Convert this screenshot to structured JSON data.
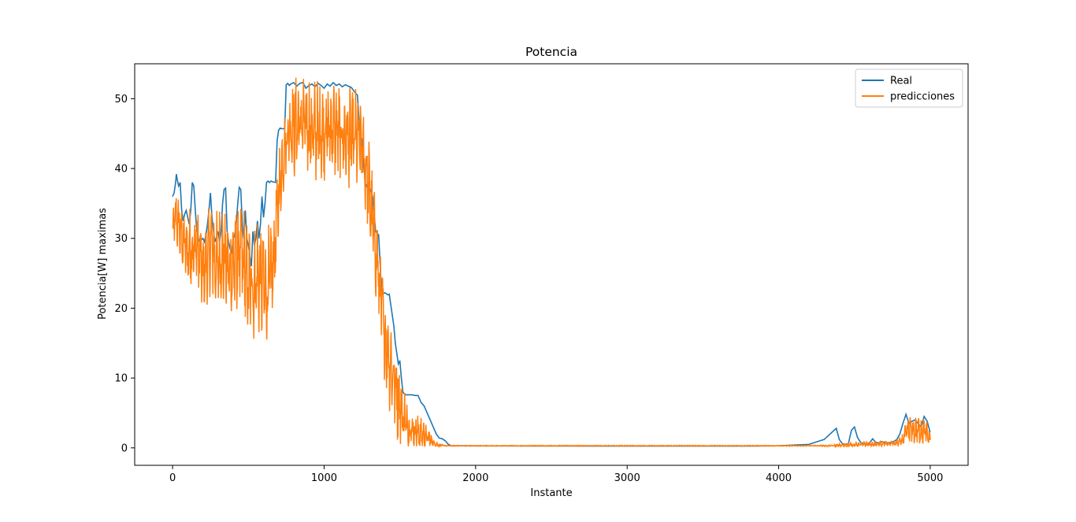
{
  "chart_data": {
    "type": "line",
    "title": "Potencia",
    "xlabel": "Instante",
    "ylabel": "Potencia[W] maximas",
    "xlim": [
      -250,
      5250
    ],
    "ylim": [
      -2.5,
      55
    ],
    "xticks": [
      0,
      1000,
      2000,
      3000,
      4000,
      5000
    ],
    "yticks": [
      0,
      10,
      20,
      30,
      40,
      50
    ],
    "grid": false,
    "legend_position": "upper right",
    "series": [
      {
        "name": "Real",
        "color": "#1f77b4",
        "x": [
          0,
          10,
          20,
          25,
          30,
          40,
          50,
          60,
          70,
          80,
          90,
          100,
          110,
          120,
          130,
          140,
          150,
          160,
          170,
          180,
          190,
          200,
          210,
          220,
          230,
          240,
          250,
          260,
          270,
          280,
          290,
          300,
          310,
          320,
          330,
          340,
          350,
          360,
          370,
          380,
          390,
          400,
          410,
          420,
          430,
          440,
          450,
          460,
          470,
          480,
          490,
          500,
          510,
          520,
          530,
          540,
          550,
          560,
          570,
          580,
          590,
          600,
          610,
          620,
          630,
          640,
          650,
          660,
          680,
          690,
          700,
          710,
          720,
          730,
          740,
          750,
          760,
          770,
          780,
          800,
          820,
          840,
          860,
          880,
          900,
          920,
          940,
          960,
          980,
          1000,
          1020,
          1040,
          1060,
          1080,
          1100,
          1120,
          1140,
          1160,
          1180,
          1200,
          1220,
          1240,
          1250,
          1260,
          1270,
          1280,
          1290,
          1300,
          1320,
          1340,
          1360,
          1380,
          1400,
          1410,
          1420,
          1430,
          1440,
          1460,
          1470,
          1480,
          1490,
          1500,
          1510,
          1520,
          1530,
          1540,
          1560,
          1580,
          1600,
          1620,
          1640,
          1660,
          1680,
          1700,
          1720,
          1740,
          1760,
          1780,
          1800,
          1820,
          1840,
          1860,
          1880,
          1900,
          2000,
          2200,
          2400,
          2600,
          2800,
          3000,
          3200,
          3400,
          3600,
          3800,
          4000,
          4200,
          4300,
          4380,
          4400,
          4420,
          4440,
          4460,
          4480,
          4500,
          4520,
          4540,
          4560,
          4580,
          4600,
          4620,
          4640,
          4660,
          4680,
          4700,
          4720,
          4740,
          4760,
          4780,
          4800,
          4820,
          4840,
          4860,
          4880,
          4900,
          4920,
          4940,
          4960,
          4980,
          5000
        ],
        "values": [
          36,
          36.5,
          38,
          39.2,
          38.5,
          37.5,
          38,
          34,
          32.5,
          33.5,
          34,
          33,
          32,
          34,
          38,
          37.5,
          34,
          31,
          30,
          29.5,
          29.8,
          30,
          29.5,
          30.5,
          32,
          34,
          36.5,
          33,
          31,
          29.5,
          30.2,
          31,
          29.5,
          31,
          35,
          37,
          37.2,
          31,
          29.5,
          28.5,
          28,
          30,
          30.5,
          32,
          35,
          37.3,
          37,
          32,
          30,
          34,
          30,
          29,
          27.5,
          26,
          31,
          29,
          30,
          32.5,
          30,
          32,
          36,
          33,
          35,
          38,
          38.2,
          38,
          38.2,
          38.1,
          38,
          44,
          45.5,
          45.8,
          45.7,
          45.7,
          45.8,
          52,
          52.2,
          51.9,
          52.1,
          52.3,
          51.8,
          52.2,
          52.3,
          51.5,
          51.9,
          52.1,
          51.7,
          52.2,
          51.9,
          51.5,
          52.1,
          51.8,
          52.3,
          51.9,
          52.1,
          51.7,
          52,
          51.8,
          51.6,
          51,
          50.5,
          44,
          44.2,
          42,
          38,
          37.5,
          37,
          37.2,
          36,
          31,
          30.5,
          22,
          22.2,
          22.1,
          21.9,
          22,
          20.5,
          17.5,
          15,
          13.5,
          12,
          12.5,
          10,
          8,
          7.7,
          7.6,
          7.6,
          7.6,
          7.5,
          7.5,
          6.5,
          6,
          5,
          4,
          3,
          2,
          1.4,
          1.3,
          1,
          0.5,
          0.3,
          0.3,
          0.3,
          0.3,
          0.28,
          0.28,
          0.27,
          0.27,
          0.26,
          0.26,
          0.26,
          0.26,
          0.26,
          0.25,
          0.3,
          0.5,
          1.2,
          2.8,
          1.2,
          0.6,
          0.5,
          0.6,
          2.5,
          3,
          1.5,
          0.8,
          0.6,
          0.6,
          0.7,
          1.3,
          0.8,
          0.7,
          0.9,
          0.8,
          0.7,
          0.8,
          0.9,
          1.2,
          2,
          3.5,
          4.8,
          3.5,
          3.8,
          4,
          3.5,
          3,
          4.5,
          3.8,
          2.2
        ],
        "noise": [
          0,
          0,
          0,
          0,
          0,
          0,
          0,
          0,
          0,
          0,
          0,
          0,
          0,
          0,
          0,
          0,
          0,
          0,
          0,
          0,
          0,
          0,
          0,
          0,
          0,
          0,
          0,
          0,
          0,
          0,
          0,
          0,
          0,
          0,
          0,
          0,
          0,
          0,
          0,
          0,
          0,
          0,
          0,
          0,
          0,
          0,
          0,
          0,
          0,
          0,
          0,
          0,
          0,
          0,
          0,
          0,
          0,
          0,
          0,
          0,
          0,
          0,
          0,
          0,
          0,
          0,
          0,
          0,
          0,
          0,
          0,
          0,
          0,
          0,
          0,
          0,
          0,
          0,
          0,
          0,
          0,
          0,
          0,
          0,
          0,
          0,
          0,
          0,
          0,
          0,
          0,
          0,
          0,
          0,
          0,
          0,
          0,
          0,
          0,
          0,
          0,
          0,
          0,
          0,
          0,
          0,
          0,
          0,
          0,
          0,
          0,
          0,
          0,
          0,
          0,
          0,
          0,
          0,
          0,
          0,
          0,
          0,
          0,
          0,
          0,
          0,
          0,
          0,
          0,
          0,
          0,
          0,
          0,
          0,
          0,
          0,
          0,
          0,
          0,
          0,
          0,
          0,
          0,
          0,
          0,
          0,
          0,
          0,
          0,
          0,
          0,
          0,
          0,
          0,
          0,
          0,
          0,
          0,
          0,
          0,
          0,
          0,
          0,
          0,
          0,
          0,
          0,
          0,
          0,
          0,
          0,
          0,
          0,
          0,
          0,
          0,
          0,
          0,
          0,
          0,
          0,
          0,
          0,
          0,
          0,
          0,
          0,
          0,
          0
        ]
      },
      {
        "name": "predicciones",
        "color": "#ff7f0e",
        "x": [
          0,
          20,
          40,
          60,
          80,
          100,
          120,
          140,
          160,
          180,
          200,
          220,
          240,
          260,
          280,
          300,
          320,
          340,
          360,
          380,
          400,
          420,
          440,
          460,
          480,
          500,
          520,
          540,
          560,
          580,
          600,
          620,
          640,
          660,
          680,
          700,
          720,
          740,
          760,
          780,
          800,
          850,
          900,
          950,
          1000,
          1050,
          1100,
          1150,
          1200,
          1230,
          1260,
          1290,
          1320,
          1350,
          1380,
          1400,
          1420,
          1440,
          1460,
          1480,
          1500,
          1520,
          1540,
          1560,
          1580,
          1600,
          1620,
          1640,
          1660,
          1680,
          1700,
          1720,
          1740,
          1760,
          1800,
          1850,
          1900,
          2000,
          2500,
          3000,
          3500,
          4000,
          4200,
          4350,
          4400,
          4450,
          4500,
          4550,
          4600,
          4650,
          4700,
          4750,
          4800,
          4820,
          4840,
          4860,
          4880,
          4900,
          4920,
          4940,
          4960,
          4980,
          5000
        ],
        "mid": [
          31,
          33,
          32,
          30,
          29,
          28,
          29,
          28,
          29,
          27,
          25,
          26,
          28,
          29,
          27,
          26,
          28,
          27,
          26,
          25,
          26,
          27,
          28,
          27,
          25,
          23,
          24,
          23,
          25,
          24,
          23,
          22,
          24,
          25,
          30,
          36,
          40,
          43,
          45,
          46,
          46,
          46.5,
          46,
          45,
          45.5,
          46,
          45,
          44.5,
          44,
          44,
          42,
          38,
          32,
          27,
          20,
          16,
          14,
          12,
          10,
          8,
          6,
          5,
          3.5,
          3,
          2.5,
          2.5,
          2.2,
          2,
          1.8,
          1.5,
          1.2,
          0.8,
          0.5,
          0.4,
          0.3,
          0.3,
          0.3,
          0.3,
          0.3,
          0.3,
          0.3,
          0.3,
          0.3,
          0.3,
          0.35,
          0.4,
          0.4,
          0.5,
          0.5,
          0.5,
          0.6,
          0.6,
          0.8,
          1.2,
          2,
          2.5,
          2.5,
          2.3,
          2.4,
          2.6,
          2.5,
          1.8,
          1.2
        ],
        "amp": [
          2,
          3,
          4,
          4,
          4,
          5,
          5,
          5,
          5,
          5,
          5,
          5,
          5,
          6,
          6,
          6,
          6,
          6,
          6,
          6,
          7,
          7,
          7,
          7,
          7,
          7,
          7,
          7,
          7,
          7,
          7,
          7,
          7,
          7,
          6,
          6,
          5,
          4,
          4,
          5,
          6,
          6,
          6,
          6,
          6,
          6,
          6,
          6,
          6,
          6,
          6,
          6,
          6,
          6,
          6,
          6,
          6,
          6,
          6,
          6,
          5,
          5,
          3,
          3,
          2.5,
          2.5,
          2.2,
          2,
          1.8,
          1.5,
          1.2,
          0.8,
          0.3,
          0.2,
          0.05,
          0.05,
          0.05,
          0.05,
          0.05,
          0.05,
          0.05,
          0.05,
          0.05,
          0.1,
          0.2,
          0.3,
          0.3,
          0.3,
          0.3,
          0.3,
          0.3,
          0.3,
          0.5,
          0.8,
          1.5,
          1.8,
          1.8,
          1.8,
          1.8,
          1.8,
          1.8,
          1.5,
          1
        ]
      }
    ]
  }
}
